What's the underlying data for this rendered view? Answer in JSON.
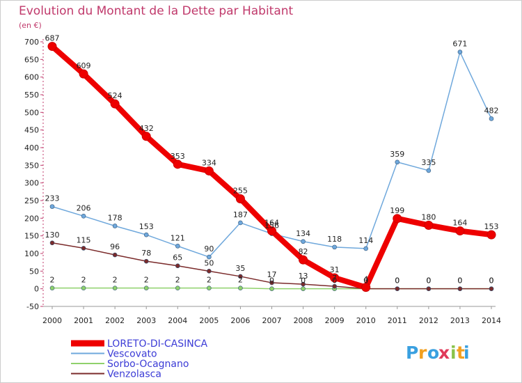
{
  "chart_data": {
    "type": "line",
    "title": "Evolution du Montant de la Dette par Habitant",
    "subtitle": "(en €)",
    "x": [
      "2000",
      "2001",
      "2002",
      "2003",
      "2004",
      "2005",
      "2006",
      "2007",
      "2008",
      "2009",
      "2010",
      "2011",
      "2012",
      "2013",
      "2014"
    ],
    "ylim": [
      -50,
      700
    ],
    "yticks": [
      -50,
      0,
      50,
      100,
      150,
      200,
      250,
      300,
      350,
      400,
      450,
      500,
      550,
      600,
      650,
      700
    ],
    "grid": false,
    "legend_position": "bottom-left",
    "series": [
      {
        "name": "LORETO-DI-CASINCA",
        "color": "#ee0000",
        "values": [
          687,
          609,
          524,
          432,
          353,
          334,
          255,
          164,
          82,
          31,
          4,
          199,
          180,
          164,
          153
        ]
      },
      {
        "name": "Vescovato",
        "color": "#6fa8dc",
        "values": [
          233,
          206,
          178,
          153,
          121,
          90,
          187,
          156,
          134,
          118,
          114,
          359,
          335,
          671,
          482
        ]
      },
      {
        "name": "Sorbo-Ocagnano",
        "color": "#8fd16b",
        "values": [
          2,
          2,
          2,
          2,
          2,
          2,
          2,
          0,
          0,
          0,
          0,
          0,
          0,
          0,
          0
        ]
      },
      {
        "name": "Venzolasca",
        "color": "#7b2b2b",
        "values": [
          130,
          115,
          96,
          78,
          65,
          50,
          35,
          17,
          13,
          7,
          0,
          0,
          0,
          0,
          0
        ]
      }
    ]
  },
  "logo": {
    "letters": [
      "P",
      "r",
      "o",
      "x",
      "i",
      "t",
      "i"
    ],
    "colors": [
      "#3aa0e0",
      "#f2a020",
      "#3aa0e0",
      "#e03a5a",
      "#8ac34a",
      "#f2a020",
      "#3aa0e0"
    ]
  }
}
